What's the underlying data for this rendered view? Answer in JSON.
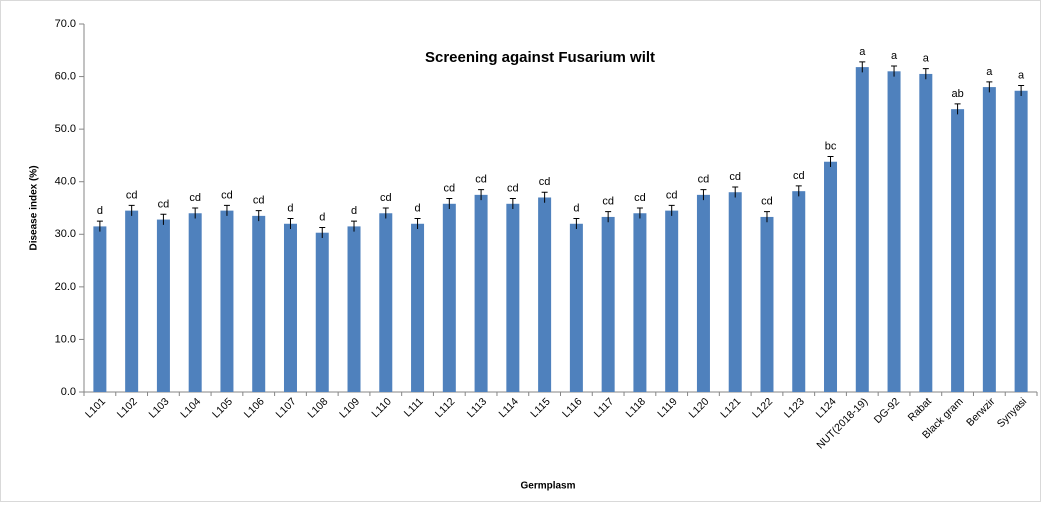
{
  "chart_data": {
    "type": "bar",
    "title": "Screening against Fusarium wilt",
    "x_label": "Germplasm",
    "y_label": "Disease index (%)",
    "categories": [
      "L101",
      "L102",
      "L103",
      "L104",
      "L105",
      "L106",
      "L107",
      "L108",
      "L109",
      "L110",
      "L111",
      "L112",
      "L113",
      "L114",
      "L115",
      "L116",
      "L117",
      "L118",
      "L119",
      "L120",
      "L121",
      "L122",
      "L123",
      "L124",
      "NUT(2018-19)",
      "DG-92",
      "Rabat",
      "Black gram",
      "Berwzir",
      "Synyasi"
    ],
    "values": [
      31.5,
      34.5,
      32.8,
      34.0,
      34.5,
      33.5,
      32.0,
      30.3,
      31.5,
      34.0,
      32.0,
      35.8,
      37.5,
      35.8,
      37.0,
      32.0,
      33.3,
      34.0,
      34.5,
      37.5,
      38.0,
      33.3,
      38.2,
      43.8,
      61.8,
      61.0,
      60.5,
      53.8,
      58.0,
      57.3
    ],
    "errors": [
      1.0,
      1.0,
      1.0,
      1.0,
      1.0,
      1.0,
      1.0,
      1.0,
      1.0,
      1.0,
      1.0,
      1.0,
      1.0,
      1.0,
      1.0,
      1.0,
      1.0,
      1.0,
      1.0,
      1.0,
      1.0,
      1.0,
      1.0,
      1.0,
      1.0,
      1.0,
      1.0,
      1.0,
      1.0,
      1.0
    ],
    "annotations": [
      "d",
      "cd",
      "cd",
      "cd",
      "cd",
      "cd",
      "d",
      "d",
      "d",
      "cd",
      "d",
      "cd",
      "cd",
      "cd",
      "cd",
      "d",
      "cd",
      "cd",
      "cd",
      "cd",
      "cd",
      "cd",
      "cd",
      "bc",
      "a",
      "a",
      "a",
      "ab",
      "a",
      "a"
    ],
    "color": "#4f81bd",
    "ylim": [
      0,
      70
    ],
    "yticks": [
      {
        "value": 0,
        "label": "0.0"
      },
      {
        "value": 10,
        "label": "10.0"
      },
      {
        "value": 20,
        "label": "20.0"
      },
      {
        "value": 30,
        "label": "30.0"
      },
      {
        "value": 40,
        "label": "40.0"
      },
      {
        "value": 50,
        "label": "50.0"
      },
      {
        "value": 60,
        "label": "60.0"
      },
      {
        "value": 70,
        "label": "70.0"
      }
    ],
    "grid": false
  }
}
